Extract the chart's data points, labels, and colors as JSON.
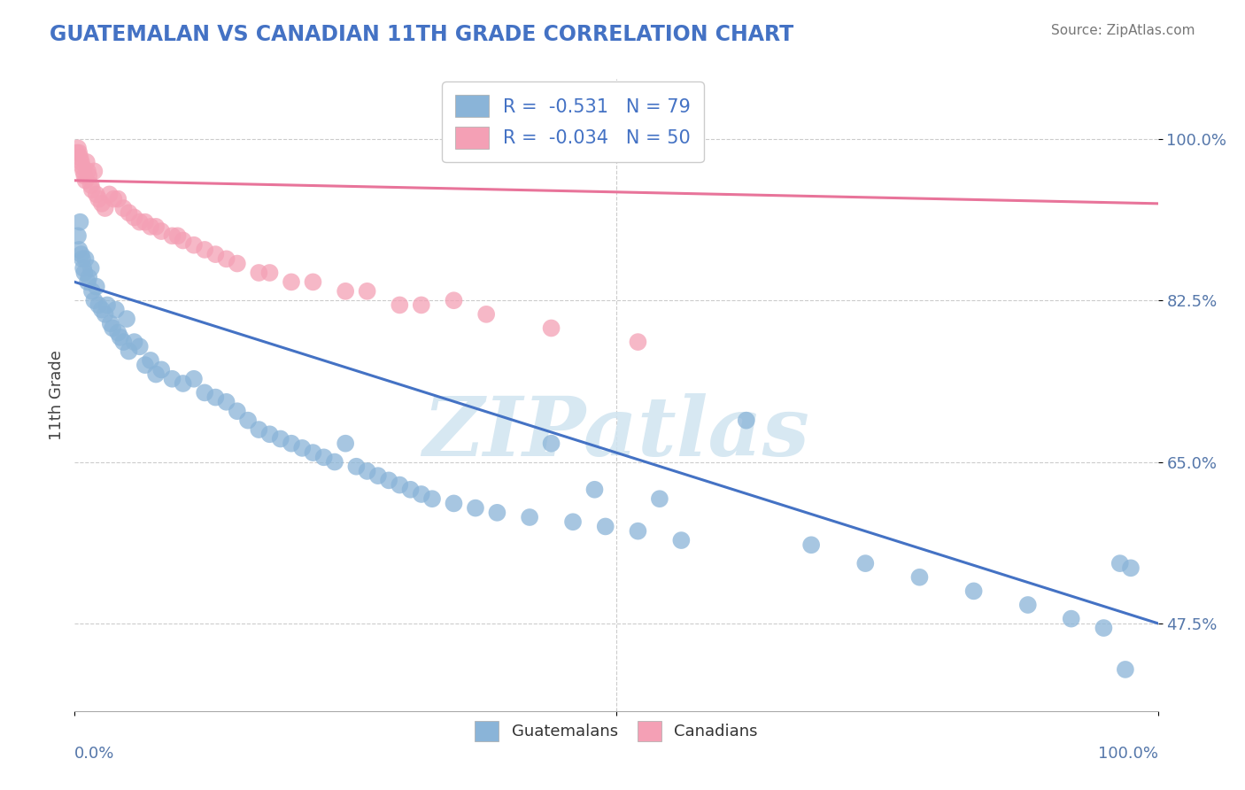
{
  "title": "GUATEMALAN VS CANADIAN 11TH GRADE CORRELATION CHART",
  "source_text": "Source: ZipAtlas.com",
  "ylabel": "11th Grade",
  "yticks": [
    0.475,
    0.65,
    0.825,
    1.0
  ],
  "ytick_labels": [
    "47.5%",
    "65.0%",
    "82.5%",
    "100.0%"
  ],
  "xmin": 0.0,
  "xmax": 1.0,
  "ymin": 0.38,
  "ymax": 1.065,
  "blue_R": -0.531,
  "blue_N": 79,
  "pink_R": -0.034,
  "pink_N": 50,
  "blue_color": "#8ab4d8",
  "pink_color": "#f4a0b5",
  "blue_line_color": "#4472c4",
  "pink_line_color": "#e8749a",
  "watermark_color": "#d0e4f0",
  "watermark_text": "ZIPatlas",
  "grid_color": "#cccccc",
  "blue_line_start_y": 0.845,
  "blue_line_end_y": 0.475,
  "pink_line_start_y": 0.955,
  "pink_line_end_y": 0.93,
  "blue_scatter_x": [
    0.003,
    0.004,
    0.005,
    0.006,
    0.007,
    0.008,
    0.009,
    0.01,
    0.012,
    0.013,
    0.015,
    0.016,
    0.018,
    0.02,
    0.022,
    0.025,
    0.028,
    0.03,
    0.033,
    0.035,
    0.038,
    0.04,
    0.042,
    0.045,
    0.048,
    0.05,
    0.055,
    0.06,
    0.065,
    0.07,
    0.075,
    0.08,
    0.09,
    0.1,
    0.11,
    0.12,
    0.13,
    0.14,
    0.15,
    0.16,
    0.17,
    0.18,
    0.19,
    0.2,
    0.21,
    0.22,
    0.23,
    0.24,
    0.25,
    0.26,
    0.27,
    0.28,
    0.29,
    0.3,
    0.31,
    0.32,
    0.33,
    0.35,
    0.37,
    0.39,
    0.42,
    0.44,
    0.46,
    0.49,
    0.52,
    0.56,
    0.62,
    0.68,
    0.73,
    0.78,
    0.83,
    0.88,
    0.92,
    0.95,
    0.97,
    0.965,
    0.975,
    0.48,
    0.54
  ],
  "blue_scatter_y": [
    0.895,
    0.88,
    0.91,
    0.875,
    0.87,
    0.86,
    0.855,
    0.87,
    0.845,
    0.85,
    0.86,
    0.835,
    0.825,
    0.84,
    0.82,
    0.815,
    0.81,
    0.82,
    0.8,
    0.795,
    0.815,
    0.79,
    0.785,
    0.78,
    0.805,
    0.77,
    0.78,
    0.775,
    0.755,
    0.76,
    0.745,
    0.75,
    0.74,
    0.735,
    0.74,
    0.725,
    0.72,
    0.715,
    0.705,
    0.695,
    0.685,
    0.68,
    0.675,
    0.67,
    0.665,
    0.66,
    0.655,
    0.65,
    0.67,
    0.645,
    0.64,
    0.635,
    0.63,
    0.625,
    0.62,
    0.615,
    0.61,
    0.605,
    0.6,
    0.595,
    0.59,
    0.67,
    0.585,
    0.58,
    0.575,
    0.565,
    0.695,
    0.56,
    0.54,
    0.525,
    0.51,
    0.495,
    0.48,
    0.47,
    0.425,
    0.54,
    0.535,
    0.62,
    0.61
  ],
  "pink_scatter_x": [
    0.002,
    0.003,
    0.004,
    0.005,
    0.006,
    0.007,
    0.008,
    0.009,
    0.01,
    0.011,
    0.012,
    0.013,
    0.015,
    0.016,
    0.018,
    0.02,
    0.022,
    0.025,
    0.028,
    0.032,
    0.036,
    0.04,
    0.045,
    0.05,
    0.055,
    0.06,
    0.07,
    0.08,
    0.09,
    0.1,
    0.11,
    0.13,
    0.15,
    0.18,
    0.22,
    0.27,
    0.32,
    0.38,
    0.44,
    0.52,
    0.3,
    0.35,
    0.25,
    0.2,
    0.17,
    0.14,
    0.12,
    0.095,
    0.075,
    0.065
  ],
  "pink_scatter_y": [
    0.985,
    0.99,
    0.985,
    0.98,
    0.975,
    0.97,
    0.965,
    0.96,
    0.955,
    0.975,
    0.965,
    0.96,
    0.95,
    0.945,
    0.965,
    0.94,
    0.935,
    0.93,
    0.925,
    0.94,
    0.935,
    0.935,
    0.925,
    0.92,
    0.915,
    0.91,
    0.905,
    0.9,
    0.895,
    0.89,
    0.885,
    0.875,
    0.865,
    0.855,
    0.845,
    0.835,
    0.82,
    0.81,
    0.795,
    0.78,
    0.82,
    0.825,
    0.835,
    0.845,
    0.855,
    0.87,
    0.88,
    0.895,
    0.905,
    0.91
  ]
}
